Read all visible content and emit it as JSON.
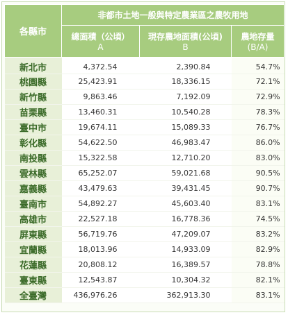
{
  "header": {
    "corner": "各縣市",
    "group_title": "非都市土地一般與特定農業區之農牧用地",
    "col_a_label": "總面積（公頃）",
    "col_a_sub": "A",
    "col_b_label": "現存農地面積(公頃)",
    "col_b_sub": "B",
    "col_c_label": "農地存量",
    "col_c_sub": "(B/A)"
  },
  "rows": [
    {
      "region": "新北市",
      "total": "4,372.54",
      "existing": "2,390.84",
      "ratio": "54.7%"
    },
    {
      "region": "桃園縣",
      "total": "25,423.91",
      "existing": "18,336.15",
      "ratio": "72.1%"
    },
    {
      "region": "新竹縣",
      "total": "9,863.46",
      "existing": "7,192.09",
      "ratio": "72.9%"
    },
    {
      "region": "苗栗縣",
      "total": "13,460.31",
      "existing": "10,540.28",
      "ratio": "78.3%"
    },
    {
      "region": "臺中市",
      "total": "19,674.11",
      "existing": "15,089.33",
      "ratio": "76.7%"
    },
    {
      "region": "彰化縣",
      "total": "54,622.50",
      "existing": "46,983.47",
      "ratio": "86.0%"
    },
    {
      "region": "南投縣",
      "total": "15,322.58",
      "existing": "12,710.20",
      "ratio": "83.0%"
    },
    {
      "region": "雲林縣",
      "total": "65,252.07",
      "existing": "59,021.68",
      "ratio": "90.5%"
    },
    {
      "region": "嘉義縣",
      "total": "43,479.63",
      "existing": "39,431.45",
      "ratio": "90.7%"
    },
    {
      "region": "臺南市",
      "total": "54,892.27",
      "existing": "45,603.40",
      "ratio": "83.1%"
    },
    {
      "region": "高雄市",
      "total": "22,527.18",
      "existing": "16,778.36",
      "ratio": "74.5%"
    },
    {
      "region": "屏東縣",
      "total": "56,719.76",
      "existing": "47,209.07",
      "ratio": "83.2%"
    },
    {
      "region": "宜蘭縣",
      "total": "18,013.96",
      "existing": "14,933.09",
      "ratio": "82.9%"
    },
    {
      "region": "花蓮縣",
      "total": "20,808.12",
      "existing": "16,389.57",
      "ratio": "78.8%"
    },
    {
      "region": "臺東縣",
      "total": "12,543.87",
      "existing": "10,304.32",
      "ratio": "82.1%"
    },
    {
      "region": "全臺灣",
      "total": "436,976.26",
      "existing": "362,913.30",
      "ratio": "83.1%"
    }
  ],
  "colors": {
    "header_bg": "#a7cc7f",
    "region_bg": "#e8f0d8",
    "region_text": "#3a6a28"
  }
}
